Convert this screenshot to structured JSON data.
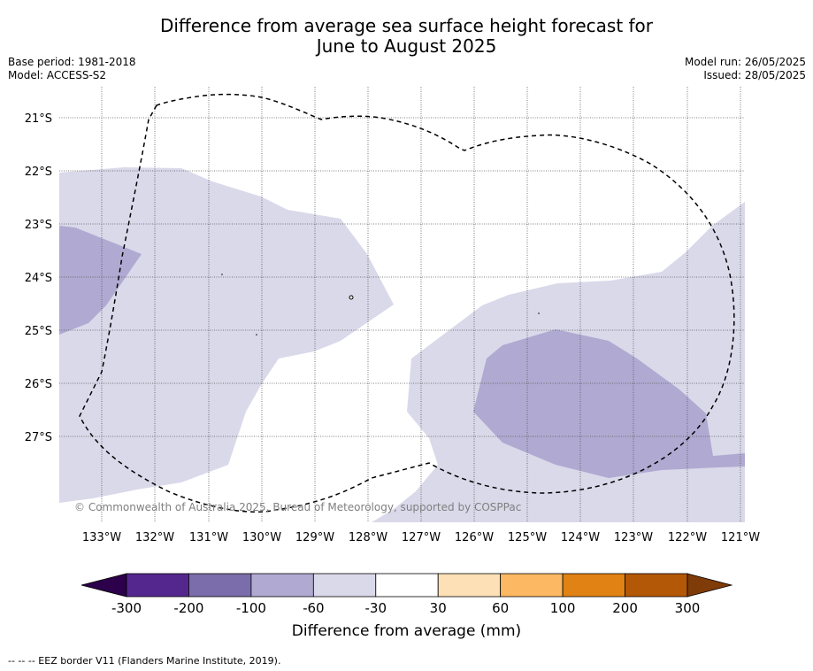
{
  "title_line1": "Difference from average sea surface height forecast for",
  "title_line2": "June to August 2025",
  "meta_left": [
    "Base period: 1981-2018",
    "Model: ACCESS-S2"
  ],
  "meta_right": [
    "Model run: 26/05/2025",
    "Issued: 28/05/2025"
  ],
  "map": {
    "lon_labels": [
      "133°W",
      "132°W",
      "131°W",
      "130°W",
      "129°W",
      "128°W",
      "127°W",
      "126°W",
      "125°W",
      "124°W",
      "123°W",
      "122°W",
      "121°W"
    ],
    "lat_labels": [
      "21°S",
      "22°S",
      "23°S",
      "24°S",
      "25°S",
      "26°S",
      "27°S"
    ],
    "copyright": "© Commonwealth of Australia 2025, Bureau of Meteorology, supported by COSPPac",
    "land_fill_color": "#ffffff",
    "eez_style": "dashed black line"
  },
  "colorbar": {
    "title": "Difference from average (mm)",
    "tick_labels": [
      "-300",
      "-200",
      "-100",
      "-60",
      "-30",
      "30",
      "60",
      "100",
      "200",
      "300"
    ],
    "colors": [
      "#54278f",
      "#7b6dab",
      "#b0a9d1",
      "#d9d9ea",
      "#ffffff",
      "#fee0b6",
      "#fdb863",
      "#e08214",
      "#b35806"
    ],
    "extend_low_color": "#2d004b",
    "extend_high_color": "#7f3b08"
  },
  "footnote": "--  --  -- EEZ border V11 (Flanders Marine Institute, 2019)."
}
